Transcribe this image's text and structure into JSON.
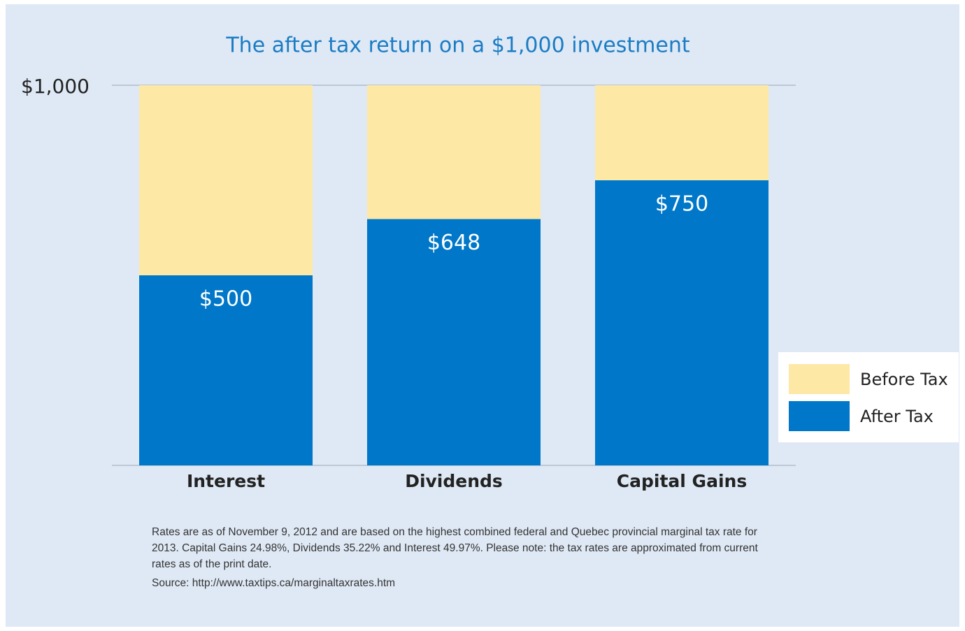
{
  "chart_data": {
    "type": "stacked_bar",
    "title": "The after tax return on a $1,000 investment",
    "categories": [
      "Interest",
      "Dividends",
      "Capital Gains"
    ],
    "series": [
      {
        "name": "After Tax",
        "color": "#0077c8",
        "values": [
          500,
          648,
          750
        ],
        "value_labels": [
          "$500",
          "$648",
          "$750"
        ]
      },
      {
        "name": "Before Tax",
        "color": "#fde8a6",
        "values": [
          500,
          352,
          250
        ]
      }
    ],
    "ylim": [
      0,
      1000
    ],
    "yticks": [
      {
        "value": 1000,
        "label": "$1,000"
      }
    ],
    "grid": true,
    "legend": "right",
    "footnote": "Rates are as of November 9, 2012 and are based on the highest combined federal and Quebec provincial marginal tax rate for 2013. Capital Gains 24.98%, Dividends 35.22% and Interest 49.97%. Please note: the tax rates are approximated from current rates as of the print date.",
    "source_label": "Source:",
    "source_url": "http://www.taxtips.ca/marginaltaxrates.htm"
  }
}
